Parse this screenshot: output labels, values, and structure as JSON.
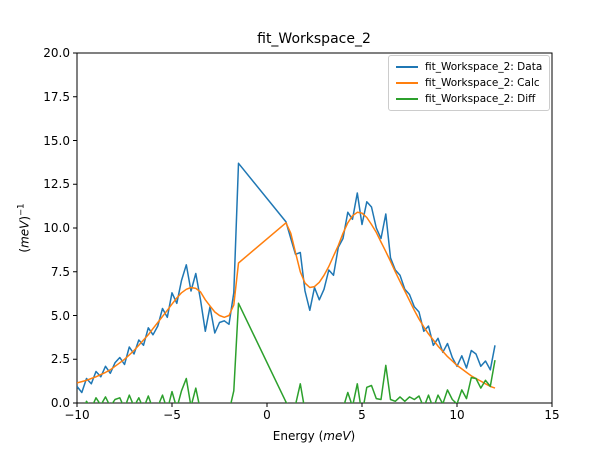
{
  "figure": {
    "background": "#ffffff"
  },
  "chart_data": {
    "type": "line",
    "title": "fit_Workspace_2",
    "xlabel": "Energy (meV)",
    "ylabel": "(meV)⁻¹",
    "xlabel_parts": {
      "text": "Energy ",
      "open": "(",
      "unit": "meV",
      "close": ")"
    },
    "ylabel_parts": {
      "open": "(",
      "unit": "meV",
      "close": ")",
      "exp": "−1"
    },
    "xlim": [
      -10,
      15
    ],
    "ylim": [
      0,
      20
    ],
    "xticks": [
      -10,
      -5,
      0,
      5,
      10,
      15
    ],
    "xtick_labels": [
      "−10",
      "−5",
      "0",
      "5",
      "10",
      "15"
    ],
    "yticks": [
      0,
      2.5,
      5,
      7.5,
      10,
      12.5,
      15,
      17.5,
      20
    ],
    "ytick_labels": [
      "0.0",
      "2.5",
      "5.0",
      "7.5",
      "10.0",
      "12.5",
      "15.0",
      "17.5",
      "20.0"
    ],
    "grid": false,
    "legend_position": "upper right",
    "x": [
      -10,
      -9.75,
      -9.5,
      -9.25,
      -9,
      -8.75,
      -8.5,
      -8.25,
      -8,
      -7.75,
      -7.5,
      -7.25,
      -7,
      -6.75,
      -6.5,
      -6.25,
      -6,
      -5.75,
      -5.5,
      -5.25,
      -5,
      -4.75,
      -4.5,
      -4.25,
      -4,
      -3.75,
      -3.5,
      -3.25,
      -3,
      -2.75,
      -2.5,
      -2.25,
      -2,
      -1.75,
      -1.5,
      1,
      1.25,
      1.5,
      1.75,
      2,
      2.25,
      2.5,
      2.75,
      3,
      3.25,
      3.5,
      3.75,
      4,
      4.25,
      4.5,
      4.75,
      5,
      5.25,
      5.5,
      5.75,
      6,
      6.25,
      6.5,
      6.75,
      7,
      7.25,
      7.5,
      7.75,
      8,
      8.25,
      8.5,
      8.75,
      9,
      9.25,
      9.5,
      9.75,
      10,
      10.25,
      10.5,
      10.75,
      11,
      11.25,
      11.5,
      11.75,
      12
    ],
    "series": [
      {
        "id": "data",
        "name": "fit_Workspace_2: Data",
        "color": "#1f77b4",
        "y": [
          0.95,
          0.6,
          1.4,
          1.1,
          1.8,
          1.5,
          2.1,
          1.7,
          2.3,
          2.6,
          2.2,
          3.2,
          2.8,
          3.6,
          3.3,
          4.3,
          3.9,
          4.4,
          5.4,
          4.9,
          6.3,
          5.7,
          7.0,
          7.9,
          6.4,
          7.4,
          5.9,
          4.1,
          5.5,
          4.0,
          4.6,
          4.7,
          4.5,
          6.3,
          13.7,
          10.35,
          9.4,
          8.5,
          8.6,
          6.4,
          5.3,
          6.6,
          5.9,
          6.5,
          7.6,
          7.3,
          8.9,
          9.4,
          10.9,
          10.5,
          12.0,
          10.2,
          11.5,
          11.2,
          10.0,
          9.4,
          10.8,
          8.3,
          7.6,
          7.3,
          6.5,
          6.2,
          5.5,
          5.2,
          4.1,
          4.4,
          3.3,
          3.7,
          2.9,
          3.4,
          2.6,
          2.1,
          2.7,
          2.0,
          3.0,
          2.8,
          2.1,
          2.4,
          1.9,
          3.3
        ]
      },
      {
        "id": "calc",
        "name": "fit_Workspace_2: Calc",
        "color": "#ff7f0e",
        "y": [
          1.15,
          1.22,
          1.3,
          1.4,
          1.5,
          1.62,
          1.75,
          1.9,
          2.1,
          2.3,
          2.5,
          2.75,
          3.0,
          3.3,
          3.6,
          3.9,
          4.25,
          4.6,
          4.95,
          5.3,
          5.65,
          6.0,
          6.3,
          6.5,
          6.6,
          6.55,
          6.35,
          5.9,
          5.55,
          5.2,
          5.0,
          4.9,
          5.0,
          5.6,
          8.0,
          10.3,
          9.7,
          8.6,
          7.5,
          6.85,
          6.6,
          6.65,
          6.9,
          7.3,
          7.8,
          8.4,
          9.0,
          9.7,
          10.3,
          10.7,
          10.9,
          10.85,
          10.6,
          10.2,
          9.75,
          9.2,
          8.65,
          8.1,
          7.5,
          6.95,
          6.4,
          5.85,
          5.3,
          4.8,
          4.35,
          3.95,
          3.6,
          3.25,
          2.95,
          2.65,
          2.4,
          2.15,
          1.95,
          1.75,
          1.55,
          1.4,
          1.25,
          1.1,
          0.95,
          0.85
        ]
      },
      {
        "id": "diff",
        "name": "fit_Workspace_2: Diff",
        "color": "#2ca02c",
        "y": [
          -0.2,
          -0.62,
          0.1,
          -0.3,
          0.3,
          -0.12,
          0.35,
          -0.2,
          0.2,
          0.3,
          -0.3,
          0.45,
          -0.2,
          0.3,
          -0.3,
          0.4,
          -0.35,
          -0.2,
          0.45,
          -0.4,
          0.65,
          -0.3,
          0.7,
          1.4,
          -0.2,
          0.85,
          -0.45,
          -1.8,
          -0.05,
          -1.2,
          -0.4,
          -0.2,
          -0.5,
          0.7,
          5.7,
          0.05,
          -0.3,
          -0.1,
          1.1,
          -0.45,
          -1.3,
          -0.05,
          -1.0,
          -0.8,
          -0.2,
          -1.1,
          -0.1,
          -0.3,
          0.6,
          -0.2,
          1.1,
          -0.65,
          0.9,
          1.0,
          0.25,
          0.2,
          2.15,
          0.2,
          0.1,
          0.35,
          0.1,
          0.35,
          0.2,
          0.4,
          -0.25,
          0.45,
          -0.3,
          0.45,
          -0.05,
          0.75,
          0.2,
          -0.05,
          0.75,
          0.25,
          1.45,
          1.4,
          0.85,
          1.3,
          0.95,
          2.45
        ]
      }
    ]
  }
}
